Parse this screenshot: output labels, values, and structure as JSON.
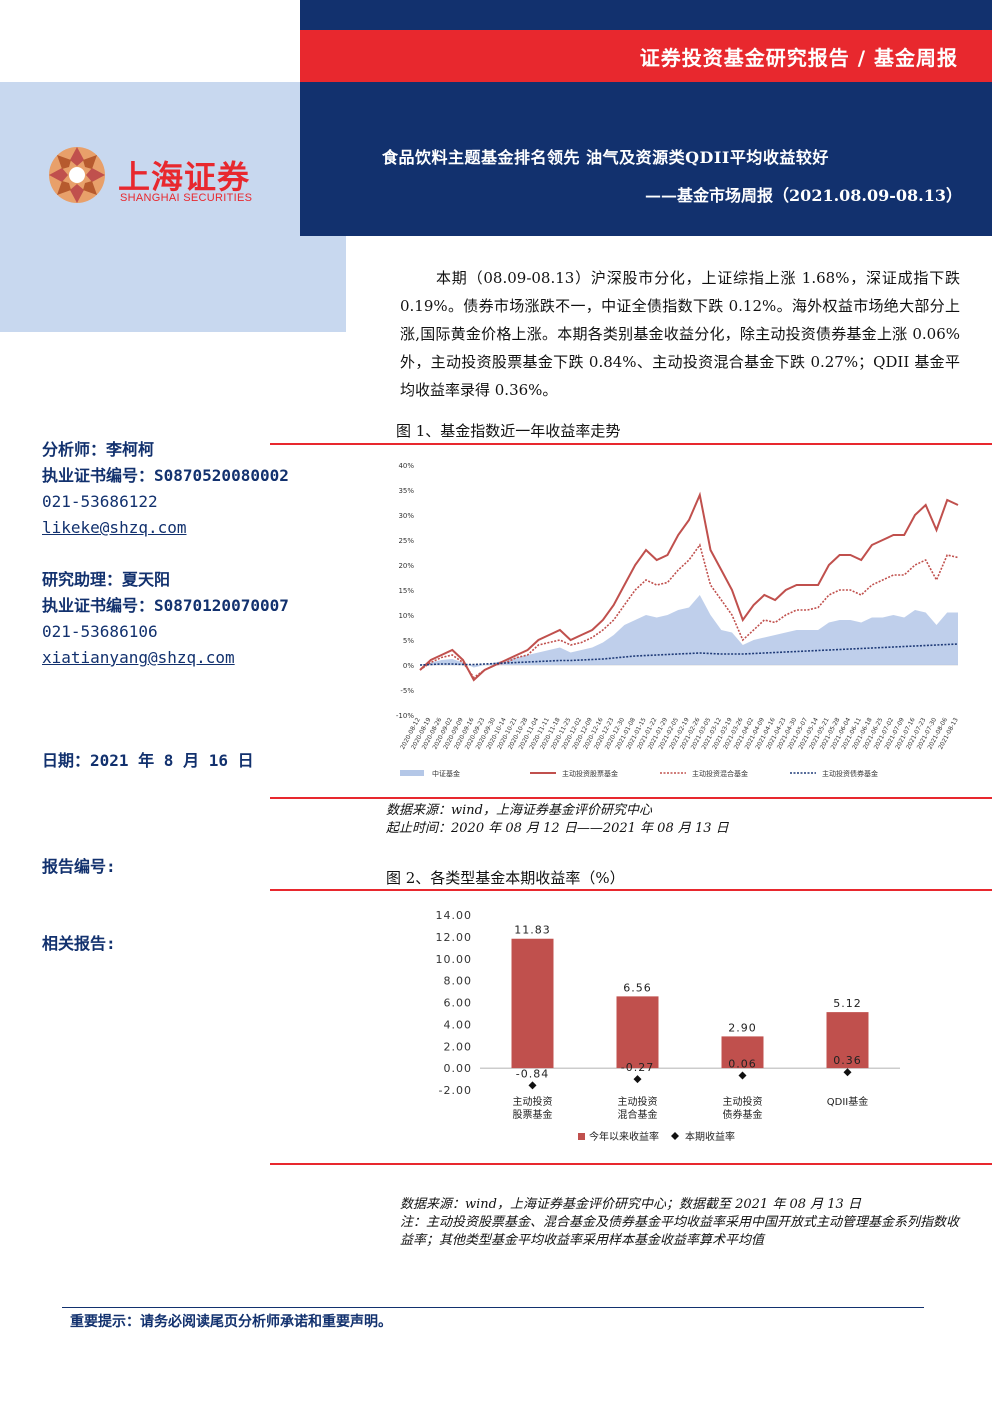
{
  "header": {
    "category": "证券投资基金研究报告 / 基金周报",
    "title": "食品饮料主题基金排名领先 油气及资源类QDII平均收益较好",
    "subtitle": "——基金市场周报（2021.08.09-08.13）"
  },
  "logo": {
    "name_cn": "上海证券",
    "name_en": "SHANGHAI SECURITIES"
  },
  "summary": "本期（08.09-08.13）沪深股市分化，上证综指上涨 1.68%，深证成指下跌 0.19%。债券市场涨跌不一，中证全债指数下跌 0.12%。海外权益市场绝大部分上涨,国际黄金价格上涨。本期各类别基金收益分化，除主动投资债券基金上涨 0.06%外，主动投资股票基金下跌 0.84%、主动投资混合基金下跌 0.27%；QDII 基金平均收益率录得 0.36%。",
  "sidebar": {
    "analyst": "分析师：李柯柯",
    "analyst_cert": "执业证书编号：S0870520080002",
    "analyst_phone": "021-53686122",
    "analyst_email": "likeke@shzq.com",
    "assistant": "研究助理：夏天阳",
    "assistant_cert": "执业证书编号：S0870120070007",
    "assistant_phone": "021-53686106",
    "assistant_email": "xiatianyang@shzq.com",
    "date": "日期：2021 年 8 月 16 日",
    "report_no": "报告编号:",
    "related": "相关报告:"
  },
  "figure1": {
    "title": "图 1、基金指数近一年收益率走势",
    "source1": "数据来源：wind，上海证券基金评价研究中心",
    "source2": "起止时间：2020 年 08 月 12 日——2021 年 08 月 13 日"
  },
  "figure2": {
    "title": "图 2、各类型基金本期收益率（%）",
    "source1": "数据来源：wind，上海证券基金评价研究中心；数据截至 2021 年 08 月 13 日",
    "note": "注：主动投资股票基金、混合基金及债券基金平均收益率采用中国开放式主动管理基金系列指数收益率；其他类型基金平均收益率采用样本基金收益率算术平均值"
  },
  "chart_data": [
    {
      "type": "line",
      "ylim": [
        -10,
        40
      ],
      "yticks": [
        "-10%",
        "-5%",
        "0%",
        "5%",
        "10%",
        "15%",
        "20%",
        "25%",
        "30%",
        "35%",
        "40%"
      ],
      "x_dates": [
        "2020-08-12",
        "2020-08-19",
        "2020-08-26",
        "2020-09-02",
        "2020-09-09",
        "2020-09-16",
        "2020-09-23",
        "2020-09-30",
        "2020-10-14",
        "2020-10-21",
        "2020-10-28",
        "2020-11-04",
        "2020-11-11",
        "2020-11-18",
        "2020-11-25",
        "2020-12-02",
        "2020-12-09",
        "2020-12-16",
        "2020-12-23",
        "2020-12-30",
        "2021-01-08",
        "2021-01-15",
        "2021-01-22",
        "2021-01-29",
        "2021-02-05",
        "2021-02-19",
        "2021-02-26",
        "2021-03-05",
        "2021-03-12",
        "2021-03-19",
        "2021-03-26",
        "2021-04-02",
        "2021-04-09",
        "2021-04-16",
        "2021-04-23",
        "2021-04-30",
        "2021-05-07",
        "2021-05-14",
        "2021-05-21",
        "2021-05-28",
        "2021-06-04",
        "2021-06-11",
        "2021-06-18",
        "2021-06-25",
        "2021-07-02",
        "2021-07-09",
        "2021-07-16",
        "2021-07-23",
        "2021-07-30",
        "2021-08-06",
        "2021-08-13"
      ],
      "series": [
        {
          "name": "中证基金",
          "style": "area",
          "color": "#b4c7e7",
          "values": [
            0,
            0.5,
            1,
            1.2,
            0.5,
            -0.5,
            0,
            0.5,
            1,
            1.5,
            2,
            2.5,
            3,
            3.5,
            2.5,
            3,
            3.5,
            4.5,
            6,
            8,
            9,
            10,
            9.5,
            10,
            11,
            11.5,
            14,
            10,
            7,
            6.5,
            4,
            5,
            5.5,
            6,
            6.5,
            7,
            7,
            7,
            8.5,
            9,
            9,
            8.5,
            9.5,
            9.5,
            10,
            9.5,
            11,
            10.5,
            8,
            10.5,
            10.5
          ]
        },
        {
          "name": "主动投资股票基金",
          "style": "solid",
          "color": "#c0504d",
          "values": [
            -1,
            1,
            2,
            3,
            1,
            -3,
            -1,
            0,
            1,
            2,
            3,
            5,
            6,
            7,
            5,
            6,
            7,
            9,
            12,
            16,
            20,
            23,
            21,
            22,
            26,
            29,
            34,
            23,
            19,
            15,
            9,
            12,
            14,
            13,
            15,
            16,
            16,
            16,
            20,
            22,
            22,
            21,
            24,
            25,
            26,
            26,
            30,
            32,
            27,
            33,
            32
          ]
        },
        {
          "name": "主动投资混合基金",
          "style": "dotted",
          "color": "#c0504d",
          "values": [
            -1,
            0.5,
            1.5,
            2,
            0.5,
            -2.5,
            -1,
            0,
            0.5,
            1.5,
            2,
            4,
            4.5,
            5,
            4,
            4.5,
            5.5,
            7,
            9,
            12,
            15,
            17,
            16,
            16.5,
            19,
            21,
            24,
            16,
            13,
            10,
            5,
            7,
            9,
            8.5,
            10,
            11,
            11,
            11.5,
            14,
            15,
            15,
            14,
            16,
            17,
            18,
            18,
            20,
            21,
            17,
            22,
            21.5
          ]
        },
        {
          "name": "主动投资债券基金",
          "style": "dotted",
          "color": "#1f3b78",
          "values": [
            0,
            0.1,
            0.2,
            0.2,
            0.1,
            0.1,
            0.2,
            0.3,
            0.4,
            0.5,
            0.6,
            0.7,
            0.8,
            0.9,
            0.9,
            1,
            1.1,
            1.2,
            1.4,
            1.6,
            1.8,
            1.9,
            2,
            2.1,
            2.2,
            2.3,
            2.4,
            2.3,
            2.2,
            2.2,
            2.2,
            2.3,
            2.4,
            2.5,
            2.6,
            2.7,
            2.8,
            2.9,
            3,
            3.1,
            3.2,
            3.3,
            3.4,
            3.5,
            3.6,
            3.7,
            3.8,
            3.9,
            4,
            4.1,
            4.2
          ]
        }
      ]
    },
    {
      "type": "bar",
      "categories": [
        [
          "主动投资",
          "股票基金"
        ],
        [
          "主动投资",
          "混合基金"
        ],
        [
          "主动投资",
          "债券基金"
        ],
        [
          "QDII基金"
        ]
      ],
      "ylim": [
        -2,
        14
      ],
      "yticks": [
        "-2.00",
        "0.00",
        "2.00",
        "4.00",
        "6.00",
        "8.00",
        "10.00",
        "12.00",
        "14.00"
      ],
      "series": [
        {
          "name": "今年以来收益率",
          "type": "bar",
          "color": "#c0504d",
          "values": [
            11.83,
            6.56,
            2.9,
            5.12
          ],
          "labels": [
            "11.83",
            "6.56",
            "2.90",
            "5.12"
          ]
        },
        {
          "name": "本期收益率",
          "type": "marker",
          "color": "#111111",
          "values": [
            -0.84,
            -0.27,
            0.06,
            0.36
          ],
          "labels": [
            "-0.84",
            "-0.27",
            "0.06",
            "0.36"
          ]
        }
      ]
    }
  ],
  "footer": {
    "notice": "重要提示：请务必阅读尾页分析师承诺和重要声明。"
  }
}
